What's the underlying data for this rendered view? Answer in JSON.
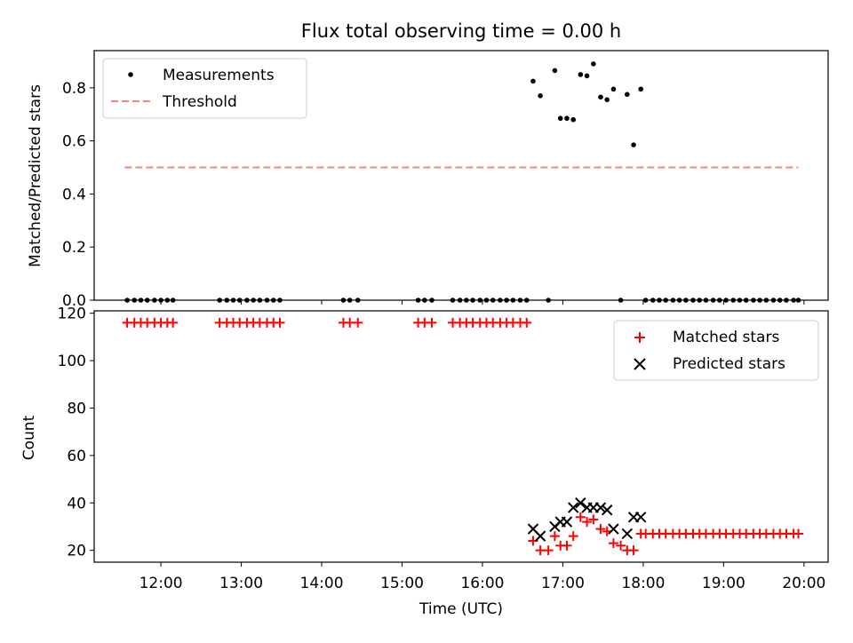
{
  "chart_data": [
    {
      "type": "scatter",
      "title": "Flux total observing time = 0.00 h",
      "xlabel": "",
      "ylabel": "Matched/Predicted stars",
      "xlim": [
        11.17,
        20.3
      ],
      "ylim": [
        0,
        0.94
      ],
      "yticks": [
        0.0,
        0.2,
        0.4,
        0.6,
        0.8
      ],
      "ytick_labels": [
        "0.0",
        "0.2",
        "0.4",
        "0.6",
        "0.8"
      ],
      "legend_position": "upper-left",
      "series": [
        {
          "name": "Measurements",
          "marker": "dot",
          "color": "#000000",
          "points": [
            [
              11.58,
              0
            ],
            [
              11.67,
              0
            ],
            [
              11.75,
              0
            ],
            [
              11.83,
              0
            ],
            [
              11.92,
              0
            ],
            [
              12.0,
              0
            ],
            [
              12.08,
              0
            ],
            [
              12.15,
              0
            ],
            [
              12.73,
              0
            ],
            [
              12.82,
              0
            ],
            [
              12.9,
              0
            ],
            [
              12.98,
              0
            ],
            [
              13.07,
              0
            ],
            [
              13.15,
              0
            ],
            [
              13.23,
              0
            ],
            [
              13.32,
              0
            ],
            [
              13.4,
              0
            ],
            [
              13.48,
              0
            ],
            [
              14.27,
              0
            ],
            [
              14.35,
              0
            ],
            [
              14.45,
              0
            ],
            [
              15.2,
              0
            ],
            [
              15.28,
              0
            ],
            [
              15.37,
              0
            ],
            [
              15.63,
              0
            ],
            [
              15.72,
              0
            ],
            [
              15.8,
              0
            ],
            [
              15.88,
              0
            ],
            [
              15.97,
              0
            ],
            [
              16.05,
              0
            ],
            [
              16.13,
              0
            ],
            [
              16.22,
              0
            ],
            [
              16.3,
              0
            ],
            [
              16.38,
              0
            ],
            [
              16.47,
              0
            ],
            [
              16.55,
              0
            ],
            [
              16.63,
              0.825
            ],
            [
              16.72,
              0.77
            ],
            [
              16.82,
              0
            ],
            [
              16.9,
              0.865
            ],
            [
              16.97,
              0.685
            ],
            [
              17.05,
              0.685
            ],
            [
              17.13,
              0.68
            ],
            [
              17.22,
              0.85
            ],
            [
              17.3,
              0.845
            ],
            [
              17.38,
              0.89
            ],
            [
              17.47,
              0.765
            ],
            [
              17.55,
              0.755
            ],
            [
              17.63,
              0.795
            ],
            [
              17.72,
              0
            ],
            [
              17.8,
              0.775
            ],
            [
              17.88,
              0.585
            ],
            [
              17.97,
              0.795
            ],
            [
              18.03,
              0
            ],
            [
              18.12,
              0
            ],
            [
              18.2,
              0
            ],
            [
              18.28,
              0
            ],
            [
              18.37,
              0
            ],
            [
              18.45,
              0
            ],
            [
              18.53,
              0
            ],
            [
              18.62,
              0
            ],
            [
              18.7,
              0
            ],
            [
              18.78,
              0
            ],
            [
              18.87,
              0
            ],
            [
              18.95,
              0
            ],
            [
              19.03,
              0
            ],
            [
              19.12,
              0
            ],
            [
              19.2,
              0
            ],
            [
              19.28,
              0
            ],
            [
              19.37,
              0
            ],
            [
              19.45,
              0
            ],
            [
              19.53,
              0
            ],
            [
              19.62,
              0
            ],
            [
              19.7,
              0
            ],
            [
              19.78,
              0
            ],
            [
              19.87,
              0
            ],
            [
              19.93,
              0
            ]
          ]
        },
        {
          "name": "Threshold",
          "marker": "dashed-line",
          "color": "#ff7f7f",
          "points": [
            [
              11.55,
              0.5
            ],
            [
              19.93,
              0.5
            ]
          ]
        }
      ]
    },
    {
      "type": "scatter",
      "title": "",
      "xlabel": "Time (UTC)",
      "ylabel": "Count",
      "xlim": [
        11.17,
        20.3
      ],
      "ylim": [
        15,
        121
      ],
      "xticks": [
        12,
        13,
        14,
        15,
        16,
        17,
        18,
        19,
        20
      ],
      "xtick_labels": [
        "12:00",
        "13:00",
        "14:00",
        "15:00",
        "16:00",
        "17:00",
        "18:00",
        "19:00",
        "20:00"
      ],
      "yticks": [
        20,
        40,
        60,
        80,
        100,
        120
      ],
      "ytick_labels": [
        "20",
        "40",
        "60",
        "80",
        "100",
        "120"
      ],
      "legend_position": "upper-right",
      "series": [
        {
          "name": "Matched stars",
          "marker": "plus",
          "color": "#ff0000",
          "points": [
            [
              11.58,
              116
            ],
            [
              11.67,
              116
            ],
            [
              11.75,
              116
            ],
            [
              11.83,
              116
            ],
            [
              11.92,
              116
            ],
            [
              12.0,
              116
            ],
            [
              12.08,
              116
            ],
            [
              12.15,
              116
            ],
            [
              12.73,
              116
            ],
            [
              12.82,
              116
            ],
            [
              12.9,
              116
            ],
            [
              12.98,
              116
            ],
            [
              13.07,
              116
            ],
            [
              13.15,
              116
            ],
            [
              13.23,
              116
            ],
            [
              13.32,
              116
            ],
            [
              13.4,
              116
            ],
            [
              13.48,
              116
            ],
            [
              14.27,
              116
            ],
            [
              14.35,
              116
            ],
            [
              14.45,
              116
            ],
            [
              15.2,
              116
            ],
            [
              15.28,
              116
            ],
            [
              15.37,
              116
            ],
            [
              15.63,
              116
            ],
            [
              15.72,
              116
            ],
            [
              15.8,
              116
            ],
            [
              15.88,
              116
            ],
            [
              15.97,
              116
            ],
            [
              16.05,
              116
            ],
            [
              16.13,
              116
            ],
            [
              16.22,
              116
            ],
            [
              16.3,
              116
            ],
            [
              16.38,
              116
            ],
            [
              16.47,
              116
            ],
            [
              16.55,
              116
            ],
            [
              16.63,
              24
            ],
            [
              16.72,
              20
            ],
            [
              16.82,
              20
            ],
            [
              16.9,
              26
            ],
            [
              16.97,
              22
            ],
            [
              17.05,
              22
            ],
            [
              17.13,
              26
            ],
            [
              17.22,
              34
            ],
            [
              17.3,
              32
            ],
            [
              17.38,
              33
            ],
            [
              17.47,
              29
            ],
            [
              17.55,
              28
            ],
            [
              17.63,
              23
            ],
            [
              17.72,
              22
            ],
            [
              17.8,
              20
            ],
            [
              17.88,
              20
            ],
            [
              17.97,
              27
            ],
            [
              18.03,
              27
            ],
            [
              18.12,
              27
            ],
            [
              18.2,
              27
            ],
            [
              18.28,
              27
            ],
            [
              18.37,
              27
            ],
            [
              18.45,
              27
            ],
            [
              18.53,
              27
            ],
            [
              18.62,
              27
            ],
            [
              18.7,
              27
            ],
            [
              18.78,
              27
            ],
            [
              18.87,
              27
            ],
            [
              18.95,
              27
            ],
            [
              19.03,
              27
            ],
            [
              19.12,
              27
            ],
            [
              19.2,
              27
            ],
            [
              19.28,
              27
            ],
            [
              19.37,
              27
            ],
            [
              19.45,
              27
            ],
            [
              19.53,
              27
            ],
            [
              19.62,
              27
            ],
            [
              19.7,
              27
            ],
            [
              19.78,
              27
            ],
            [
              19.87,
              27
            ],
            [
              19.93,
              27
            ]
          ]
        },
        {
          "name": "Predicted stars",
          "marker": "x",
          "color": "#000000",
          "points": [
            [
              16.63,
              29
            ],
            [
              16.72,
              26
            ],
            [
              16.9,
              30
            ],
            [
              16.97,
              32
            ],
            [
              17.05,
              32
            ],
            [
              17.13,
              38
            ],
            [
              17.22,
              40
            ],
            [
              17.3,
              38
            ],
            [
              17.38,
              38
            ],
            [
              17.47,
              38
            ],
            [
              17.55,
              37
            ],
            [
              17.63,
              29
            ],
            [
              17.8,
              27
            ],
            [
              17.88,
              34
            ],
            [
              17.97,
              34
            ]
          ]
        }
      ]
    }
  ]
}
